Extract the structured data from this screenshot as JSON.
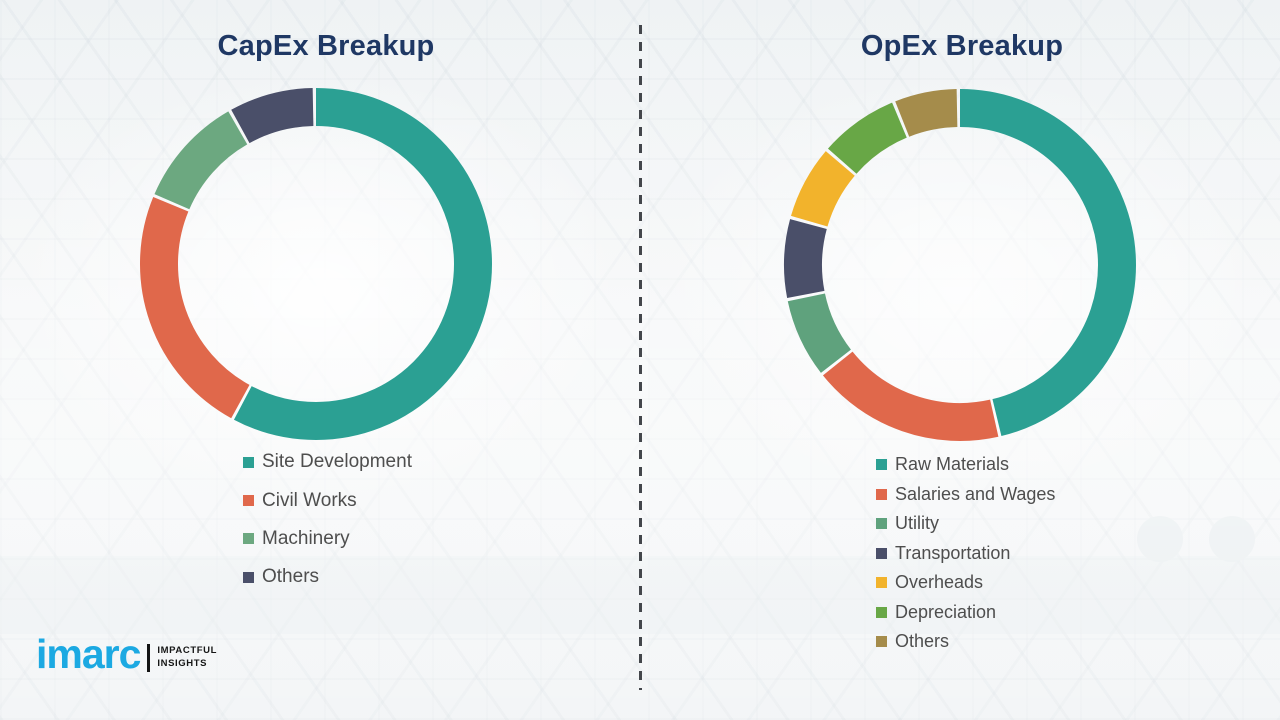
{
  "chart_data": [
    {
      "type": "pie",
      "subtype": "donut",
      "title": "CapEx Breakup",
      "labels": [
        "Site Development",
        "Civil Works",
        "Machinery",
        "Others"
      ],
      "values": [
        58,
        23.5,
        10.5,
        8
      ],
      "values_note": "percent, estimated from arc angles (no data labels shown)",
      "colors": [
        "#2BA093",
        "#E0684B",
        "#6CA880",
        "#4A4F69"
      ],
      "start_angle_deg": 0,
      "direction": "clockwise",
      "legend_position": "below-left",
      "data_labels_shown": false
    },
    {
      "type": "pie",
      "subtype": "donut",
      "title": "OpEx Breakup",
      "labels": [
        "Raw Materials",
        "Salaries and Wages",
        "Utility",
        "Transportation",
        "Overheads",
        "Depreciation",
        "Others"
      ],
      "values": [
        46.5,
        18,
        7.5,
        7.5,
        7,
        7.5,
        6
      ],
      "values_note": "percent, estimated from arc angles (no data labels shown)",
      "colors": [
        "#2BA093",
        "#E0684B",
        "#5FA27D",
        "#4A4F69",
        "#F2B32C",
        "#68A746",
        "#A58C4B"
      ],
      "start_angle_deg": 0,
      "direction": "clockwise",
      "legend_position": "below-left",
      "data_labels_shown": false
    }
  ],
  "logo": {
    "brand": "imarc",
    "tagline_line1": "IMPACTFUL",
    "tagline_line2": "INSIGHTS",
    "brand_color": "#1CA9E2"
  },
  "colors": {
    "title_text": "#1F3864",
    "legend_text": "#4E4E4E",
    "divider": "#43464B",
    "background": "#F1F4F6"
  }
}
